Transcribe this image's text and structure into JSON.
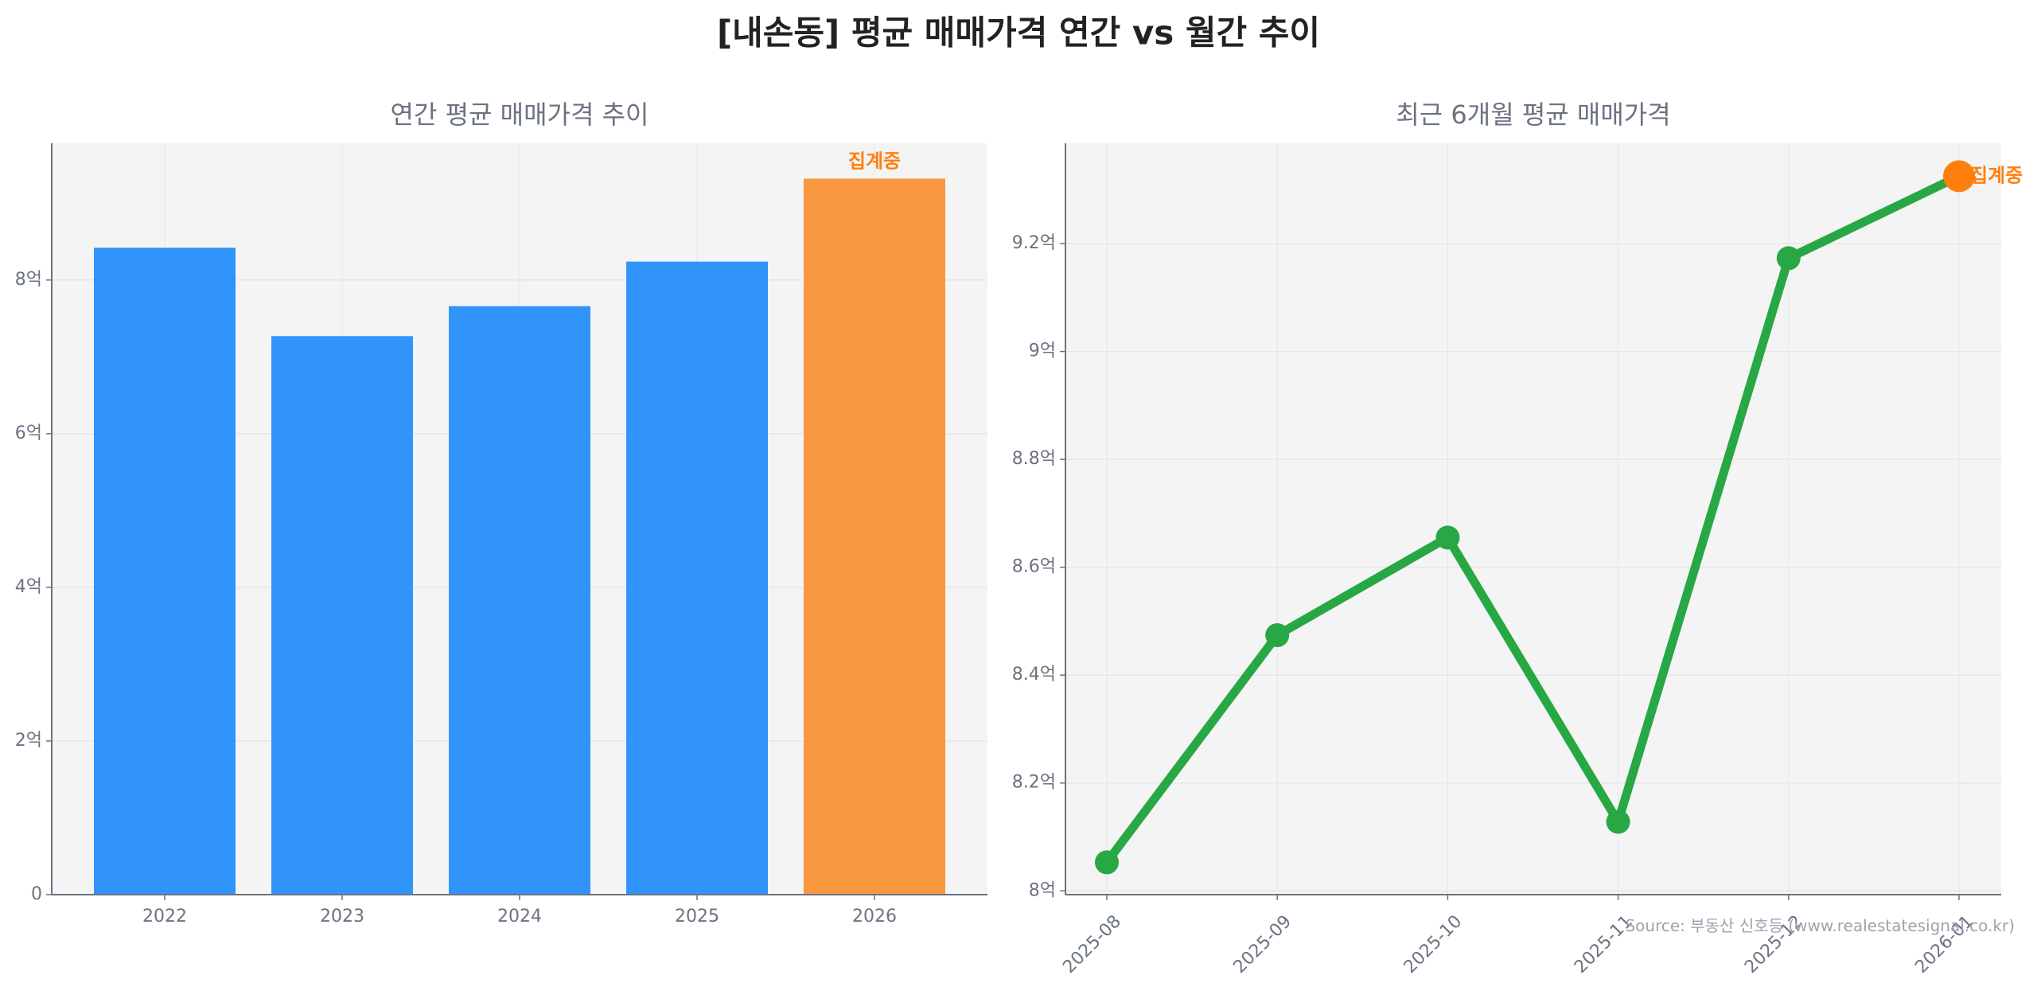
{
  "title": "[내손동] 평균 매매가격 연간 vs 월간 추이",
  "source": "Source: 부동산 신호등 (www.realestatesignal.co.kr)",
  "chart_data": [
    {
      "type": "bar",
      "title": "연간 평균 매매가격 추이",
      "categories": [
        "2022",
        "2023",
        "2024",
        "2025",
        "2026"
      ],
      "values": [
        8.42,
        7.27,
        7.66,
        8.24,
        9.32
      ],
      "unit": "억",
      "colors": [
        "#3194fb",
        "#3194fb",
        "#3194fb",
        "#3194fb",
        "#f99740"
      ],
      "annotation": {
        "category": "2026",
        "text": "집계중",
        "color": "#ff7f0e"
      },
      "yticks": [
        0,
        2,
        4,
        6,
        8
      ],
      "ytick_labels": [
        "0",
        "2억",
        "4억",
        "6억",
        "8억"
      ],
      "ylim": [
        0,
        9.78
      ],
      "grid": true
    },
    {
      "type": "line",
      "title": "최근 6개월 평균 매매가격",
      "x": [
        "2025-08",
        "2025-09",
        "2025-10",
        "2025-11",
        "2025-12",
        "2026-01"
      ],
      "values": [
        8.053,
        8.474,
        8.655,
        8.128,
        9.173,
        9.325
      ],
      "unit": "억",
      "line_color": "#28a745",
      "highlight": {
        "x": "2026-01",
        "text": "집계중",
        "color": "#ff7f0e"
      },
      "yticks": [
        8.0,
        8.2,
        8.4,
        8.6,
        8.8,
        9.0,
        9.2
      ],
      "ytick_labels": [
        "8억",
        "8.2억",
        "8.4억",
        "8.6억",
        "8.8억",
        "9억",
        "9.2억"
      ],
      "ylim": [
        7.993,
        9.386
      ],
      "grid": true
    }
  ]
}
